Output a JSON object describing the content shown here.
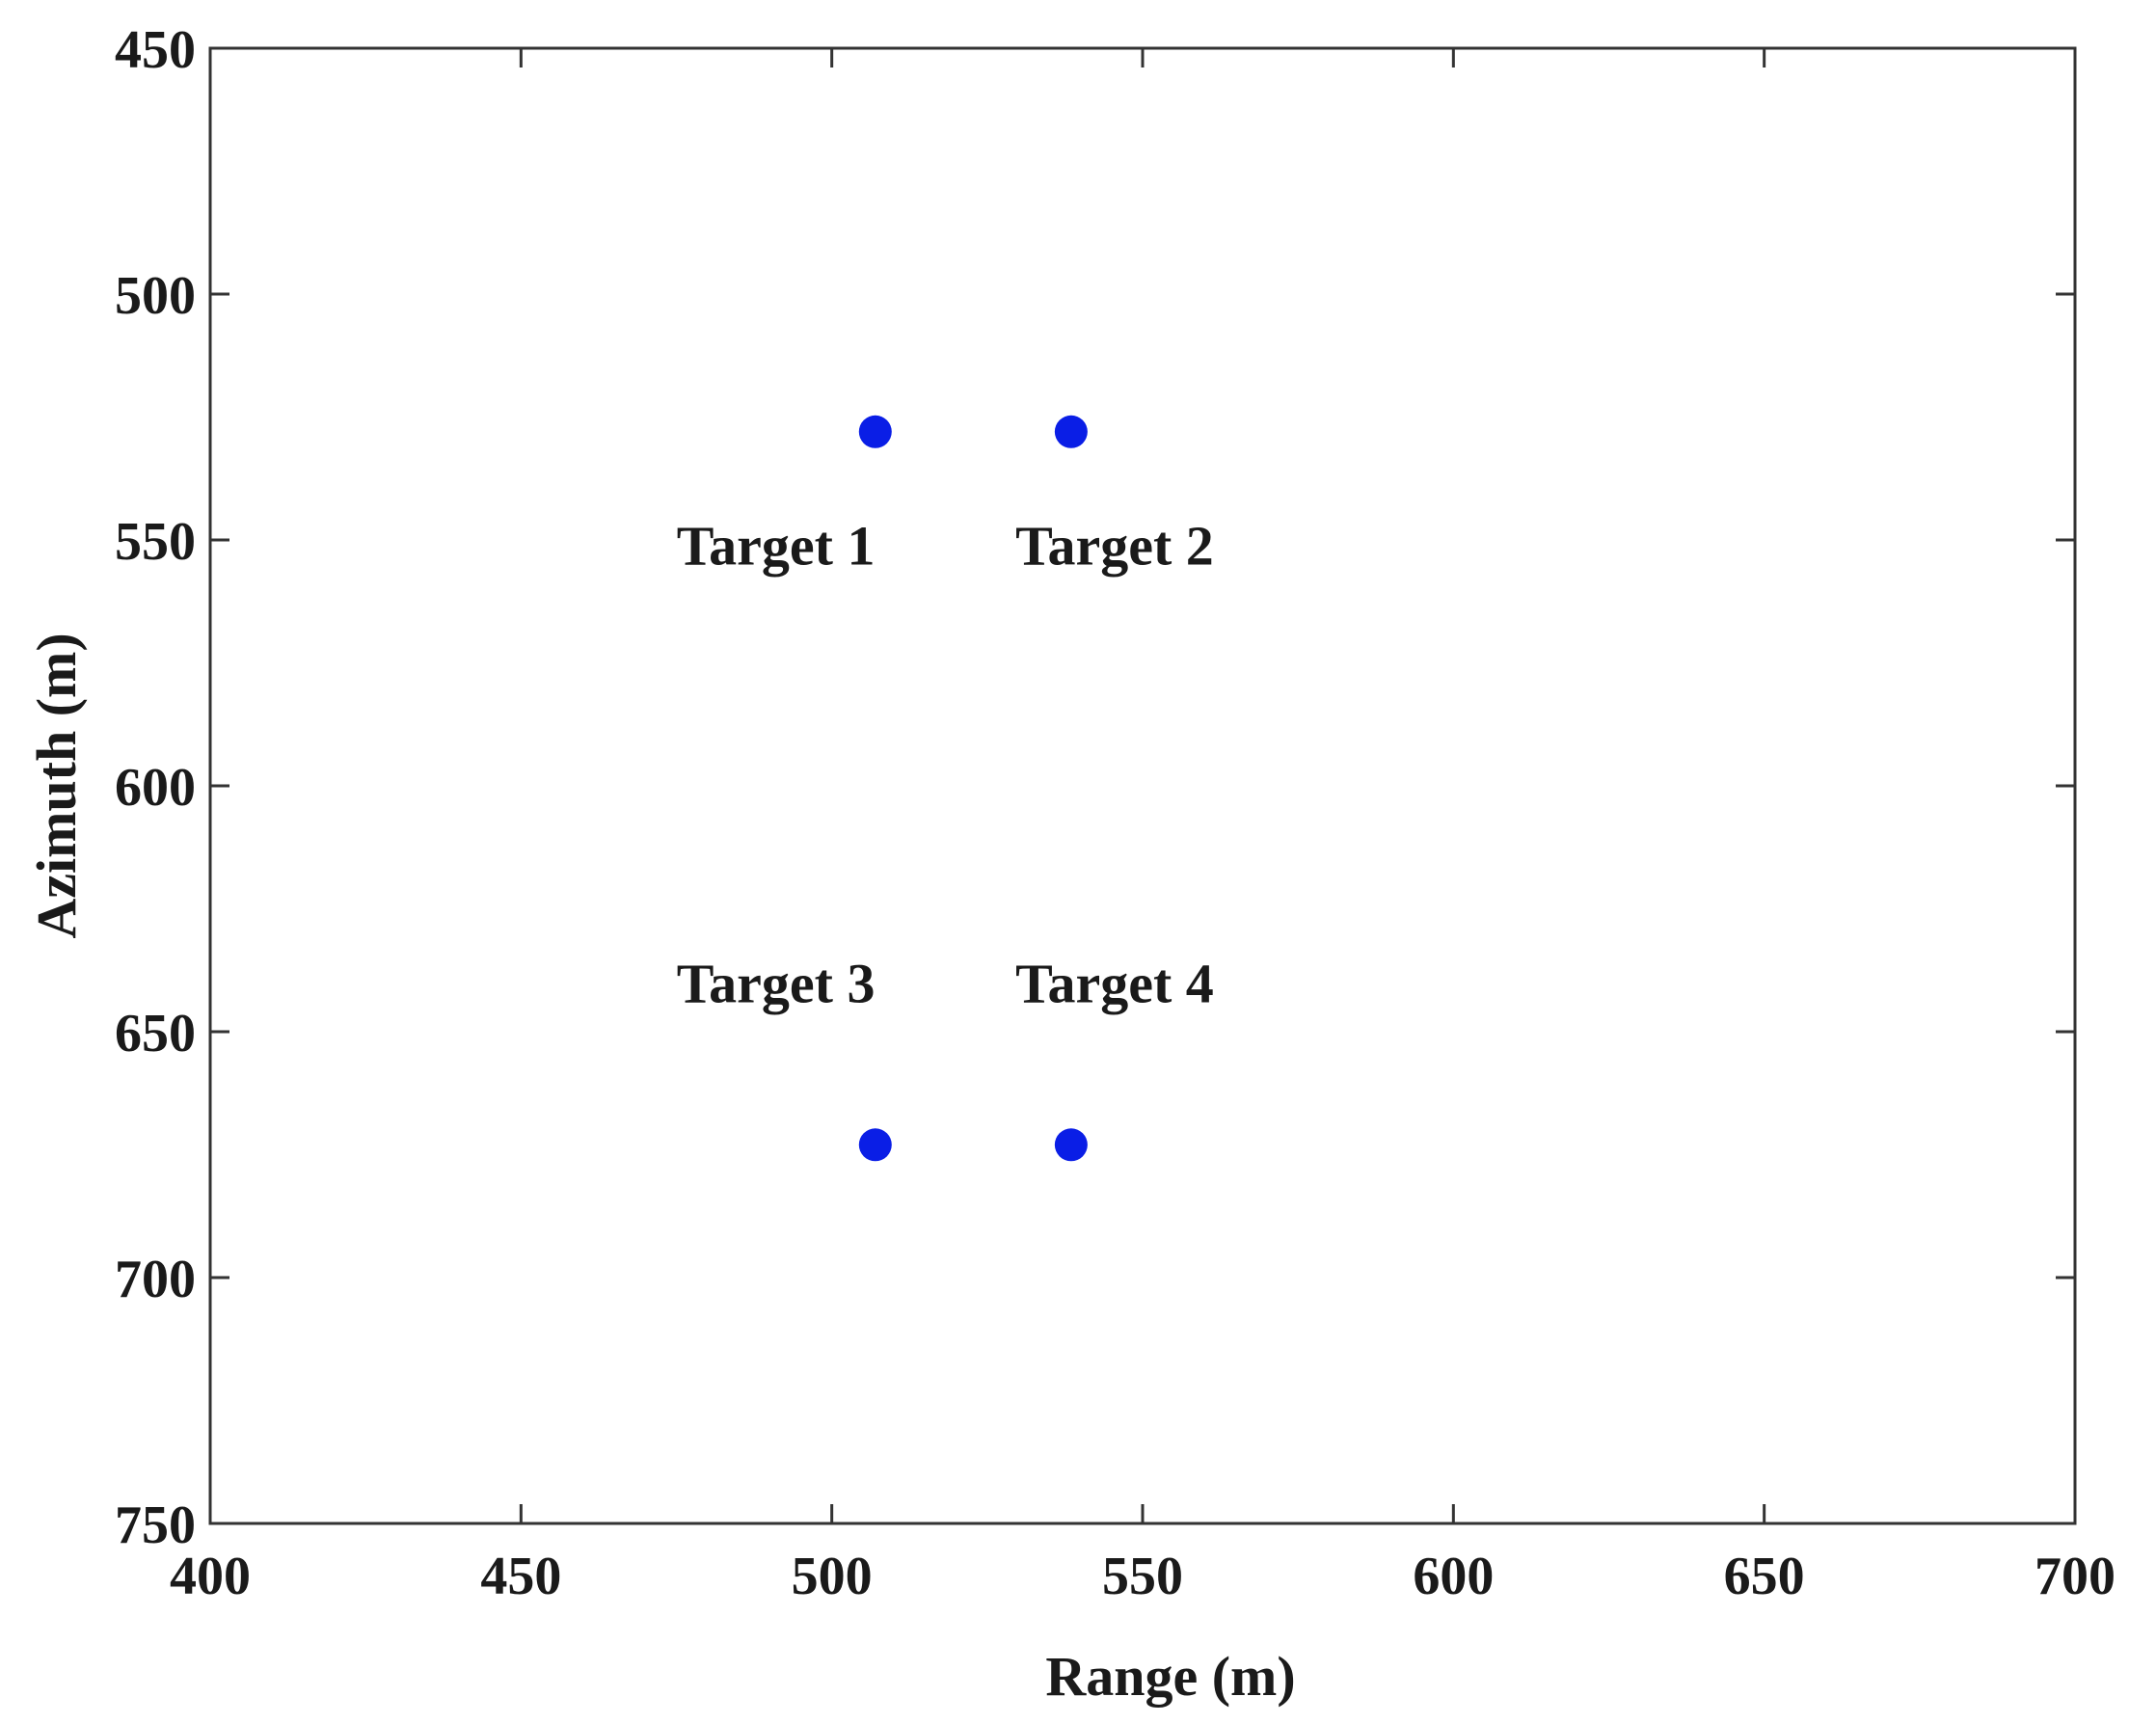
{
  "chart_data": {
    "type": "scatter",
    "title": "",
    "xlabel": "Range (m)",
    "ylabel": "Azimuth (m)",
    "xlim": [
      400,
      700
    ],
    "ylim": [
      450,
      750
    ],
    "y_axis_reversed": true,
    "xticks": [
      "400",
      "450",
      "500",
      "550",
      "600",
      "650",
      "700"
    ],
    "yticks": [
      "450",
      "500",
      "550",
      "600",
      "650",
      "700",
      "750"
    ],
    "grid": false,
    "legend": "none",
    "marker_color": "#0a1ee6",
    "points": [
      {
        "x": 507,
        "y": 528
      },
      {
        "x": 538.5,
        "y": 528
      },
      {
        "x": 507,
        "y": 673
      },
      {
        "x": 538.5,
        "y": 673
      }
    ],
    "annotations": [
      {
        "text": "Target 1",
        "x": 491,
        "y": 555
      },
      {
        "text": "Target 2",
        "x": 545.5,
        "y": 555
      },
      {
        "text": "Target 3",
        "x": 491,
        "y": 644
      },
      {
        "text": "Target 4",
        "x": 545.5,
        "y": 644
      }
    ]
  }
}
